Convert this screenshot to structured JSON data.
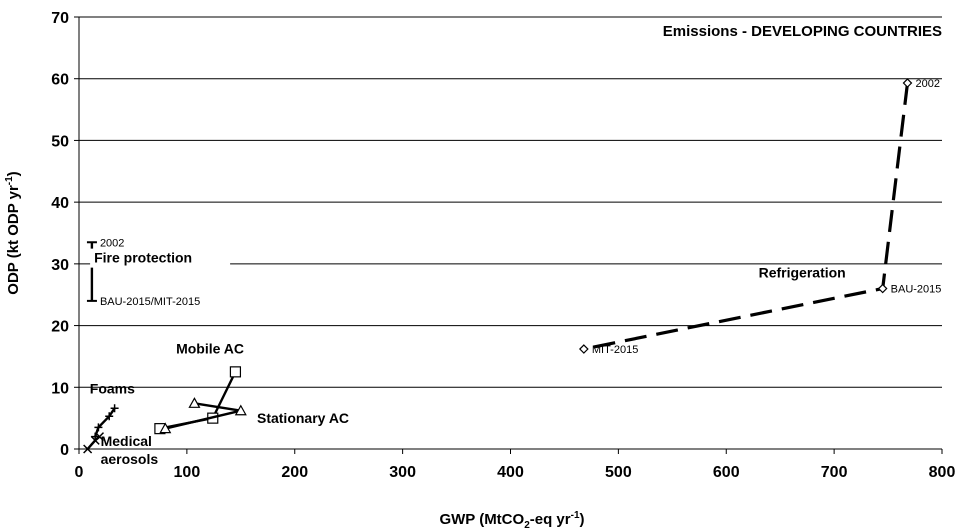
{
  "chart_data": {
    "type": "line",
    "title": "Emissions - DEVELOPING COUNTRIES",
    "xlabel": {
      "main": "GWP (MtCO",
      "sub": "2",
      "mid": "-eq yr",
      "sup": "-1",
      "end": ")"
    },
    "ylabel": {
      "main": "ODP (kt ODP yr",
      "sup": "-1",
      "end": ")"
    },
    "xlim": [
      0,
      800
    ],
    "ylim": [
      0,
      70
    ],
    "x_ticks": [
      "0",
      "100",
      "200",
      "300",
      "400",
      "500",
      "600",
      "700",
      "800"
    ],
    "y_ticks": [
      "0",
      "10",
      "20",
      "30",
      "40",
      "50",
      "60",
      "70"
    ],
    "grid": "horizontal",
    "series": [
      {
        "name": "Refrigeration",
        "marker": "diamond",
        "line": "dashed",
        "points": [
          {
            "x": 768,
            "y": 59.3,
            "label": "2002"
          },
          {
            "x": 745,
            "y": 26.0,
            "label": "BAU-2015"
          },
          {
            "x": 468,
            "y": 16.2,
            "label": "MIT-2015"
          }
        ]
      },
      {
        "name": "Fire protection",
        "marker": "bar",
        "line": "solid",
        "points": [
          {
            "x": 12,
            "y": 33.5,
            "label": "2002"
          },
          {
            "x": 12,
            "y": 24.0,
            "label": "BAU-2015/MIT-2015"
          }
        ]
      },
      {
        "name": "Mobile AC",
        "marker": "square",
        "line": "solid",
        "points": [
          {
            "x": 145,
            "y": 12.5
          },
          {
            "x": 124,
            "y": 5.0
          },
          {
            "x": 75,
            "y": 3.3
          }
        ]
      },
      {
        "name": "Stationary AC",
        "marker": "triangle",
        "line": "solid",
        "points": [
          {
            "x": 107,
            "y": 7.4
          },
          {
            "x": 150,
            "y": 6.2
          },
          {
            "x": 80,
            "y": 3.3
          }
        ]
      },
      {
        "name": "Foams",
        "marker": "plus",
        "line": "solid",
        "points": [
          {
            "x": 33,
            "y": 6.6
          },
          {
            "x": 28,
            "y": 5.3
          },
          {
            "x": 18,
            "y": 3.5
          },
          {
            "x": 15,
            "y": 2.0
          }
        ]
      },
      {
        "name": "Medical aerosols",
        "name_lines": [
          "Medical",
          "aerosols"
        ],
        "marker": "cross",
        "line": "solid",
        "points": [
          {
            "x": 19,
            "y": 2.0
          },
          {
            "x": 15,
            "y": 1.4
          },
          {
            "x": 8,
            "y": 0.0
          }
        ]
      }
    ]
  }
}
